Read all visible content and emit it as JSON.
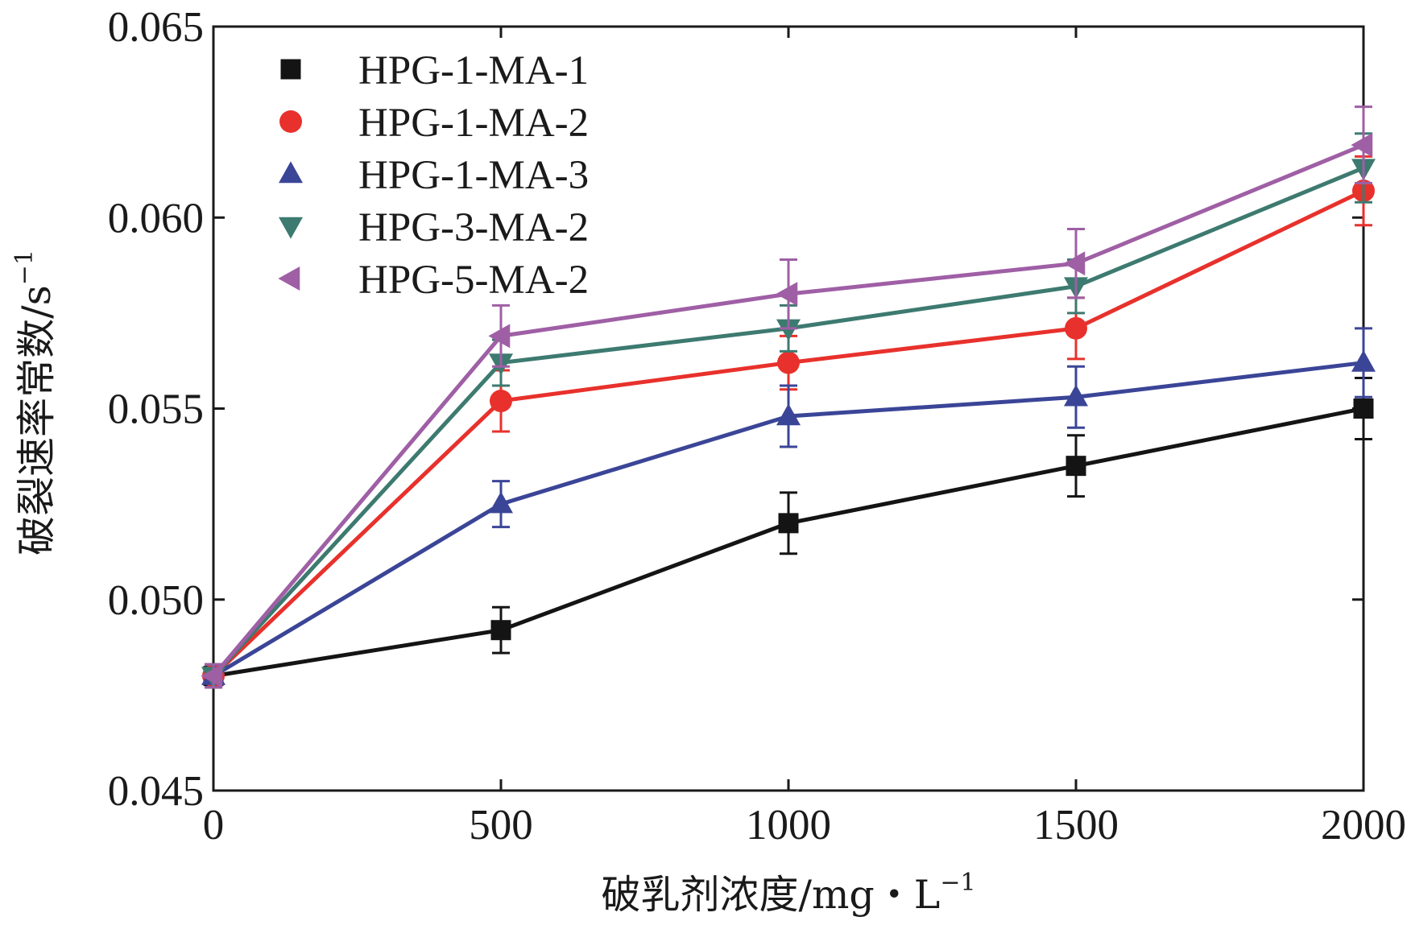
{
  "chart_data": {
    "type": "line",
    "xlabel": "破乳剂浓度/mg・L",
    "xlabel_sup": "−1",
    "ylabel": "破裂速率常数/s",
    "ylabel_sup": "−1",
    "xlim": [
      0,
      2000
    ],
    "ylim": [
      0.045,
      0.065
    ],
    "x_ticks": [
      "0",
      "500",
      "1000",
      "1500",
      "2000"
    ],
    "y_ticks": [
      "0.045",
      "0.050",
      "0.055",
      "0.060",
      "0.065"
    ],
    "x": [
      0,
      500,
      1000,
      1500,
      2000
    ],
    "grid": false,
    "legend_position": "top-left",
    "series": [
      {
        "name": "HPG-1-MA-1",
        "marker": "square",
        "color": "#141414",
        "values": [
          0.048,
          0.0492,
          0.052,
          0.0535,
          0.055
        ],
        "errors": [
          0.0003,
          0.0006,
          0.0008,
          0.0008,
          0.0008
        ]
      },
      {
        "name": "HPG-1-MA-2",
        "marker": "circle",
        "color": "#e8312c",
        "values": [
          0.048,
          0.0552,
          0.0562,
          0.0571,
          0.0607
        ],
        "errors": [
          0.0003,
          0.0008,
          0.0007,
          0.0008,
          0.0009
        ]
      },
      {
        "name": "HPG-1-MA-3",
        "marker": "triangle-up",
        "color": "#3b4597",
        "values": [
          0.048,
          0.0525,
          0.0548,
          0.0553,
          0.0562
        ],
        "errors": [
          0.0003,
          0.0006,
          0.0008,
          0.0008,
          0.0009
        ]
      },
      {
        "name": "HPG-3-MA-2",
        "marker": "triangle-down",
        "color": "#3d7a70",
        "values": [
          0.048,
          0.0562,
          0.0571,
          0.0582,
          0.0613
        ],
        "errors": [
          0.0003,
          0.0006,
          0.0006,
          0.0007,
          0.0009
        ]
      },
      {
        "name": "HPG-5-MA-2",
        "marker": "triangle-left",
        "color": "#9f5fa5",
        "values": [
          0.048,
          0.0569,
          0.058,
          0.0588,
          0.0619
        ],
        "errors": [
          0.0003,
          0.0008,
          0.0009,
          0.0009,
          0.001
        ]
      }
    ]
  }
}
